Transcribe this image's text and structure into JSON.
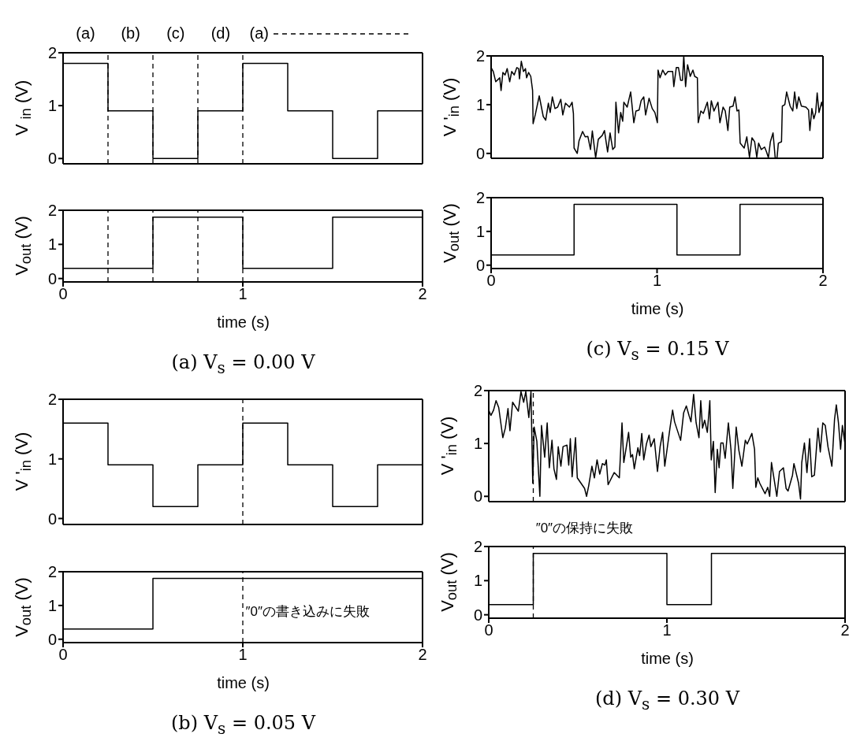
{
  "chart_data": [
    {
      "type": "step",
      "ylabel": "V $_{in}$ (V)",
      "xlim": [
        0,
        2
      ],
      "xticks": [
        0,
        1,
        2
      ],
      "ylim": [
        -0.1,
        2
      ],
      "yticks": [
        0,
        1,
        2
      ],
      "tick_labels": "y",
      "series": [
        {
          "color": "#000000",
          "x": [
            0,
            0.25,
            0.5,
            0.75,
            1,
            1.25,
            1.5,
            1.75,
            2
          ],
          "values": [
            1.8,
            0.9,
            0,
            0.9,
            1.8,
            0.9,
            0,
            0.9,
            0.9
          ]
        }
      ],
      "ref_lines": [
        {
          "axis": "x",
          "value": 0.25,
          "line_style": "dashed"
        },
        {
          "axis": "x",
          "value": 0.5,
          "line_style": "dashed"
        },
        {
          "axis": "x",
          "value": 0.75,
          "line_style": "dashed"
        },
        {
          "axis": "x",
          "value": 1,
          "line_style": "dashed"
        }
      ],
      "annotations": [
        "(a)",
        "(b)",
        "(c)",
        "(d)",
        "(a)"
      ]
    },
    {
      "type": "step",
      "title": "(a) V$_{s}$ = 0.00 V",
      "xlabel": "time (s)",
      "ylabel": "V$_{out}$ (V)",
      "xlim": [
        0,
        2
      ],
      "xticks": [
        0,
        1,
        2
      ],
      "ylim": [
        -0.1,
        2
      ],
      "yticks": [
        0,
        1,
        2
      ],
      "series": [
        {
          "color": "#000000",
          "x": [
            0,
            0.5,
            1,
            1.5,
            2
          ],
          "values": [
            0.3,
            1.8,
            0.3,
            1.8,
            1.8
          ]
        }
      ],
      "ref_lines": [
        {
          "axis": "x",
          "value": 0.25,
          "line_style": "dashed"
        },
        {
          "axis": "x",
          "value": 0.5,
          "line_style": "dashed"
        },
        {
          "axis": "x",
          "value": 0.75,
          "line_style": "dashed"
        },
        {
          "axis": "x",
          "value": 1,
          "line_style": "dashed"
        }
      ]
    },
    {
      "type": "step",
      "ylabel": "V '$_{in}$ (V)",
      "xlim": [
        0,
        2
      ],
      "xticks": [
        0,
        1,
        2
      ],
      "ylim": [
        -0.1,
        2
      ],
      "yticks": [
        0,
        1,
        2
      ],
      "tick_labels": "y",
      "series": [
        {
          "color": "#000000",
          "x": [
            0,
            0.25,
            0.5,
            0.75,
            1,
            1.25,
            1.5,
            1.75,
            2
          ],
          "values": [
            1.6,
            0.9,
            0.2,
            0.9,
            1.6,
            0.9,
            0.2,
            0.9,
            0.9
          ]
        }
      ],
      "ref_lines": [
        {
          "axis": "x",
          "value": 1,
          "line_style": "dashed"
        }
      ]
    },
    {
      "type": "step",
      "title": "(b) V$_{s}$ = 0.05 V",
      "xlabel": "time (s)",
      "ylabel": "V$_{out}$ (V)",
      "xlim": [
        0,
        2
      ],
      "xticks": [
        0,
        1,
        2
      ],
      "ylim": [
        -0.1,
        2
      ],
      "yticks": [
        0,
        1,
        2
      ],
      "series": [
        {
          "color": "#000000",
          "x": [
            0,
            0.5,
            2
          ],
          "values": [
            0.3,
            1.8,
            1.8
          ]
        }
      ],
      "ref_lines": [
        {
          "axis": "x",
          "value": 1,
          "line_style": "dashed"
        }
      ],
      "annotations": [
        {
          "text": "″0″の書き込みに失敗",
          "x": 1,
          "y": 0.8
        }
      ]
    },
    {
      "type": "line",
      "ylabel": "V '$_{in}$ (V)",
      "xlim": [
        0,
        2
      ],
      "xticks": [
        0,
        1,
        2
      ],
      "ylim": [
        -0.1,
        2
      ],
      "yticks": [
        0,
        1,
        2
      ],
      "tick_labels": "y",
      "series": [
        {
          "color": "#000000",
          "x": [
            0,
            0.013,
            0.028,
            0.052,
            0.06,
            0.071,
            0.084,
            0.097,
            0.112,
            0.124,
            0.139,
            0.155,
            0.166,
            0.171,
            0.182,
            0.195,
            0.207,
            0.214,
            0.226,
            0.239,
            0.25,
            0.253,
            0.266,
            0.29,
            0.314,
            0.329,
            0.345,
            0.356,
            0.369,
            0.385,
            0.401,
            0.42,
            0.432,
            0.448,
            0.472,
            0.488,
            0.496,
            0.5,
            0.519,
            0.53,
            0.551,
            0.567,
            0.583,
            0.599,
            0.61,
            0.63,
            0.646,
            0.67,
            0.683,
            0.702,
            0.717,
            0.733,
            0.746,
            0.752,
            0.768,
            0.781,
            0.793,
            0.8,
            0.82,
            0.841,
            0.86,
            0.873,
            0.892,
            0.904,
            0.92,
            0.931,
            0.952,
            0.971,
            0.987,
            1.002,
            1.006,
            1.018,
            1.034,
            1.05,
            1.066,
            1.094,
            1.101,
            1.116,
            1.129,
            1.142,
            1.153,
            1.161,
            1.172,
            1.184,
            1.2,
            1.216,
            1.227,
            1.243,
            1.248,
            1.264,
            1.279,
            1.303,
            1.316,
            1.327,
            1.343,
            1.367,
            1.379,
            1.398,
            1.411,
            1.427,
            1.438,
            1.458,
            1.47,
            1.482,
            1.493,
            1.501,
            1.525,
            1.541,
            1.557,
            1.572,
            1.588,
            1.601,
            1.612,
            1.628,
            1.648,
            1.66,
            1.671,
            1.683,
            1.699,
            1.712,
            1.723,
            1.731,
            1.75,
            1.755,
            1.77,
            1.781,
            1.802,
            1.818,
            1.829,
            1.842,
            1.854,
            1.87,
            1.897,
            1.913,
            1.921,
            1.933,
            1.945,
            1.956,
            1.965,
            1.976,
            1.992,
            2
          ],
          "values": [
            1.76,
            1.68,
            1.47,
            1.55,
            1.29,
            1.66,
            1.61,
            1.74,
            1.47,
            1.68,
            1.61,
            1.76,
            1.74,
            1.53,
            1.89,
            1.68,
            1.74,
            1.55,
            1.66,
            1.58,
            1.29,
            0.61,
            0.79,
            1.18,
            0.76,
            0.68,
            1.03,
            0.84,
            1.16,
            0.92,
            0.95,
            1.11,
            0.79,
            1.03,
            0.95,
            1.05,
            0.82,
            0.11,
            0,
            0.26,
            0.45,
            0.34,
            0.35,
            0.08,
            0.46,
            -0.09,
            0.29,
            0.37,
            0.47,
            0.03,
            0.42,
            0.08,
            0.13,
            1.05,
            0.42,
            0.84,
            0.66,
            1.05,
            0.95,
            1.26,
            0.63,
            0.87,
            0.89,
            1.08,
            1.16,
            0.79,
            1.13,
            0.92,
            0.84,
            0.63,
            1.71,
            1.55,
            1.71,
            1.61,
            1.68,
            1.68,
            1.37,
            1.76,
            1.76,
            1.5,
            1.5,
            2,
            1.37,
            1.82,
            1.58,
            1.71,
            1.58,
            1.55,
            0.63,
            0.87,
            0.82,
            1.05,
            0.71,
            1.08,
            0.87,
            1.05,
            0.63,
            0.95,
            0.87,
            0.47,
            0.95,
            0.97,
            1.16,
            0.87,
            0.89,
            0.21,
            0.11,
            0.34,
            -0.08,
            0.32,
            0.24,
            -0.08,
            0.21,
            0.08,
            0.13,
            0.03,
            -0.09,
            0.24,
            0.42,
            -0.09,
            -0.09,
            0.21,
            0.24,
            0.97,
            1,
            1.26,
            0.97,
            0.87,
            1.26,
            0.92,
            1.16,
            0.97,
            0.95,
            0.89,
            0.47,
            0.92,
            0.71,
            0.84,
            1.24,
            0.84,
            1.05,
            0.92
          ]
        }
      ]
    },
    {
      "type": "step",
      "title": "(c) V$_{s}$ = 0.15 V",
      "xlabel": "time (s)",
      "ylabel": "V$_{out}$ (V)",
      "xlim": [
        0,
        2
      ],
      "xticks": [
        0,
        1,
        2
      ],
      "ylim": [
        -0.1,
        2
      ],
      "yticks": [
        0,
        1,
        2
      ],
      "series": [
        {
          "color": "#000000",
          "x": [
            0,
            0.5,
            1.12,
            1.5,
            2
          ],
          "values": [
            0.3,
            1.8,
            0.3,
            1.8,
            1.8
          ]
        }
      ]
    },
    {
      "type": "line",
      "ylabel": "V '$_{in}$ (V)",
      "xlim": [
        0,
        2
      ],
      "xticks": [
        0,
        1,
        2
      ],
      "ylim": [
        -0.1,
        2
      ],
      "yticks": [
        0,
        1,
        2
      ],
      "tick_labels": "y",
      "series": [
        {
          "color": "#000000",
          "x": [
            0,
            0.012,
            0.027,
            0.041,
            0.056,
            0.063,
            0.079,
            0.093,
            0.108,
            0.119,
            0.134,
            0.152,
            0.166,
            0.181,
            0.196,
            0.208,
            0.225,
            0.237,
            0.247,
            0.255,
            0.27,
            0.287,
            0.296,
            0.314,
            0.328,
            0.34,
            0.355,
            0.366,
            0.38,
            0.39,
            0.405,
            0.417,
            0.439,
            0.449,
            0.458,
            0.468,
            0.487,
            0.497,
            0.52,
            0.538,
            0.549,
            0.561,
            0.579,
            0.593,
            0.608,
            0.623,
            0.638,
            0.652,
            0.66,
            0.67,
            0.685,
            0.704,
            0.719,
            0.733,
            0.748,
            0.758,
            0.77,
            0.785,
            0.797,
            0.807,
            0.817,
            0.837,
            0.847,
            0.859,
            0.87,
            0.885,
            0.9,
            0.91,
            0.929,
            0.947,
            0.962,
            0.976,
            0.988,
            1,
            1.018,
            1.032,
            1.043,
            1.057,
            1.077,
            1.094,
            1.109,
            1.124,
            1.135,
            1.15,
            1.164,
            1.18,
            1.19,
            1.2,
            1.212,
            1.227,
            1.241,
            1.249,
            1.261,
            1.271,
            1.283,
            1.293,
            1.303,
            1.315,
            1.327,
            1.345,
            1.36,
            1.37,
            1.389,
            1.404,
            1.421,
            1.44,
            1.451,
            1.477,
            1.492,
            1.499,
            1.51,
            1.521,
            1.536,
            1.551,
            1.566,
            1.577,
            1.587,
            1.602,
            1.617,
            1.632,
            1.654,
            1.669,
            1.68,
            1.692,
            1.705,
            1.713,
            1.72,
            1.739,
            1.75,
            1.757,
            1.772,
            1.786,
            1.801,
            1.813,
            1.828,
            1.848,
            1.861,
            1.875,
            1.889,
            1.904,
            1.926,
            1.941,
            1.951,
            1.963,
            1.975,
            1.985,
            2
          ],
          "values": [
            1.63,
            1.53,
            1.63,
            1.81,
            1.68,
            null,
            1.11,
            1.29,
            1.66,
            1.24,
            1.78,
            null,
            1.61,
            1.98,
            1.78,
            1.98,
            1.49,
            1.98,
            0.25,
            1.31,
            1.04,
            0,
            1.34,
            0.74,
            1.39,
            0.54,
            1.06,
            0.52,
            0.32,
            0.94,
            0.57,
            0.94,
            0.97,
            0.59,
            1.09,
            0.37,
            1.11,
            0.35,
            null,
            0.15,
            0,
            0.2,
            0.57,
            0.35,
            0.69,
            0.42,
            0.62,
            0.59,
            0.69,
            0.22,
            null,
            0.45,
            null,
            0.35,
            1.39,
            0.64,
            0.89,
            1.21,
            0.74,
            0.79,
            0.52,
            0.92,
            0.77,
            1.19,
            0.69,
            0.99,
            1.16,
            0.94,
            1.09,
            0.47,
            0.94,
            1.21,
            0.57,
            null,
            1.31,
            1.63,
            1.41,
            null,
            1.06,
            1.58,
            1.71,
            1.53,
            1.41,
            1.93,
            1.39,
            1.11,
            1.81,
            1.29,
            1.44,
            1.21,
            1.81,
            0.69,
            1.04,
            0.07,
            0.89,
            0.54,
            1.01,
            1.01,
            0.72,
            1.39,
            0.87,
            0.15,
            1.31,
            0.87,
            0.57,
            1.06,
            0.99,
            1.19,
            0.89,
            0.17,
            0.35,
            0.25,
            null,
            0.05,
            0.17,
            0,
            0.64,
            null,
            0,
            0.47,
            0.54,
            0.15,
            0.1,
            null,
            0.4,
            0.62,
            null,
            0.25,
            -0.05,
            0.64,
            1.01,
            0.45,
            1.09,
            0.37,
            0.4,
            1.29,
            0.84,
            1.39,
            1.34,
            0.94,
            0.57,
            1.46,
            1.73,
            1.39,
            0.89,
            1.34,
            0.99
          ]
        }
      ],
      "ref_lines": [
        {
          "axis": "x",
          "value": 0.25,
          "line_style": "dashed"
        }
      ]
    },
    {
      "type": "step",
      "title": "(d) V$_{s}$ = 0.30 V",
      "xlabel": "time (s)",
      "ylabel": "V$_{out}$ (V)",
      "xlim": [
        0,
        2
      ],
      "xticks": [
        0,
        1,
        2
      ],
      "ylim": [
        -0.1,
        2
      ],
      "yticks": [
        0,
        1,
        2
      ],
      "series": [
        {
          "color": "#000000",
          "x": [
            0,
            0.25,
            1,
            1.25,
            2
          ],
          "values": [
            0.3,
            1.8,
            0.3,
            1.8,
            1.8
          ]
        }
      ],
      "ref_lines": [
        {
          "axis": "x",
          "value": 0.25,
          "line_style": "dashed"
        }
      ],
      "annotations": [
        "″0″の保持に失敗"
      ]
    }
  ]
}
